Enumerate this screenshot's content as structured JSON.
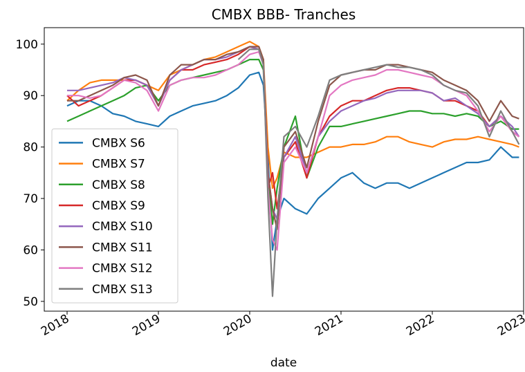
{
  "chart_data": {
    "type": "line",
    "title": "CMBX BBB- Tranches",
    "x_label": "date",
    "x": [
      2018.0,
      2018.125,
      2018.25,
      2018.375,
      2018.5,
      2018.625,
      2018.75,
      2018.875,
      2019.0,
      2019.125,
      2019.25,
      2019.375,
      2019.5,
      2019.625,
      2019.75,
      2019.875,
      2020.0,
      2020.1,
      2020.15,
      2020.2,
      2020.25,
      2020.3,
      2020.375,
      2020.5,
      2020.625,
      2020.75,
      2020.875,
      2021.0,
      2021.125,
      2021.25,
      2021.375,
      2021.5,
      2021.625,
      2021.75,
      2021.875,
      2022.0,
      2022.125,
      2022.25,
      2022.375,
      2022.5,
      2022.625,
      2022.75,
      2022.875,
      2022.95
    ],
    "xlim": [
      2017.75,
      2023.0
    ],
    "xticks": [
      2018,
      2019,
      2020,
      2021,
      2022,
      2023
    ],
    "ylim": [
      48.1,
      103.2
    ],
    "yticks": [
      50,
      60,
      70,
      80,
      90,
      100
    ],
    "legend": "lower left",
    "series": [
      {
        "name": "CMBX S6",
        "color": "#1f77b4",
        "values": [
          88,
          89,
          89,
          88,
          86.5,
          86,
          85,
          84.5,
          84,
          86,
          87,
          88,
          88.5,
          89,
          90,
          91.5,
          94,
          94.5,
          92,
          78,
          60,
          66,
          70,
          68,
          67,
          70,
          72,
          74,
          75,
          73,
          72,
          73,
          73,
          72,
          73,
          74,
          75,
          76,
          77,
          77,
          77.5,
          80,
          78,
          78
        ]
      },
      {
        "name": "CMBX S7",
        "color": "#ff7f0e",
        "values": [
          89,
          91,
          92.5,
          93,
          93,
          93,
          93,
          92,
          91,
          94,
          95,
          96,
          97,
          97.5,
          98.5,
          99.5,
          100.5,
          99.5,
          97,
          80,
          72,
          74,
          79,
          78,
          78,
          79,
          80,
          80,
          80.5,
          80.5,
          81,
          82,
          82,
          81,
          80.5,
          80,
          81,
          81.5,
          81.5,
          82,
          81.5,
          81,
          80.5,
          80
        ]
      },
      {
        "name": "CMBX S8",
        "color": "#2ca02c",
        "values": [
          85,
          86,
          87,
          88,
          89,
          90,
          91.5,
          92,
          89,
          92,
          93,
          93.5,
          94,
          94.5,
          95,
          96,
          97,
          97,
          95,
          75,
          65,
          72,
          80,
          86,
          74,
          80,
          84,
          84,
          84.5,
          85,
          85.5,
          86,
          86.5,
          87,
          87,
          86.5,
          86.5,
          86,
          86.5,
          86,
          84,
          85,
          83.5,
          83.5
        ]
      },
      {
        "name": "CMBX S9",
        "color": "#d62728",
        "values": [
          90,
          88,
          89,
          90,
          91.5,
          93,
          93,
          92,
          88,
          93,
          95,
          95,
          96,
          96.5,
          97,
          98,
          99.5,
          99,
          96,
          72,
          75,
          68,
          78,
          81,
          74,
          82,
          86,
          88,
          89,
          89,
          90,
          91,
          91.5,
          91.5,
          91,
          90.5,
          89,
          89,
          88,
          87,
          84,
          86,
          83,
          82
        ]
      },
      {
        "name": "CMBX S10",
        "color": "#9467bd",
        "values": [
          91,
          91,
          91.5,
          92,
          92.5,
          93.5,
          93,
          92,
          88,
          93,
          95,
          96,
          97,
          97,
          97.5,
          98.5,
          99.5,
          99,
          96,
          75,
          68,
          66,
          78,
          82,
          75,
          82,
          85,
          87,
          88,
          89,
          89.5,
          90.5,
          91,
          91,
          91,
          90.5,
          89,
          89.5,
          88,
          86.5,
          84,
          86,
          84,
          82
        ]
      },
      {
        "name": "CMBX S11",
        "color": "#8c564b",
        "values": [
          89,
          89,
          90,
          91,
          92,
          93.5,
          94,
          93,
          88,
          94,
          96,
          96,
          97,
          97,
          98,
          98.5,
          99.5,
          99.5,
          97,
          75,
          68,
          64,
          80,
          83,
          76,
          85,
          92,
          94,
          94.5,
          95,
          95,
          96,
          96,
          95.5,
          95,
          94.5,
          93,
          92,
          91,
          89,
          85,
          89,
          86,
          85.5
        ]
      },
      {
        "name": "CMBX S12",
        "color": "#e377c2",
        "values": [
          90,
          90,
          89.5,
          90,
          91.5,
          93,
          92.5,
          91,
          87,
          92,
          93,
          93.5,
          93.5,
          94,
          95,
          96,
          98,
          98.5,
          96,
          72,
          62,
          60,
          77,
          80,
          75,
          82,
          90,
          92,
          93,
          93.5,
          94,
          95,
          95,
          94.5,
          94,
          93.5,
          92,
          91,
          90,
          87,
          83,
          86,
          83,
          82
        ]
      },
      {
        "name": "CMBX S13",
        "color": "#7f7f7f",
        "values": [
          null,
          null,
          null,
          null,
          null,
          null,
          null,
          null,
          null,
          null,
          null,
          null,
          null,
          null,
          null,
          97,
          99,
          99,
          96,
          70,
          51,
          66,
          82,
          84,
          80,
          86,
          93,
          94,
          94.5,
          95,
          95.5,
          96,
          95.5,
          95.5,
          95,
          94,
          92,
          91,
          90.5,
          88,
          82,
          87,
          83,
          80.5
        ]
      }
    ]
  }
}
